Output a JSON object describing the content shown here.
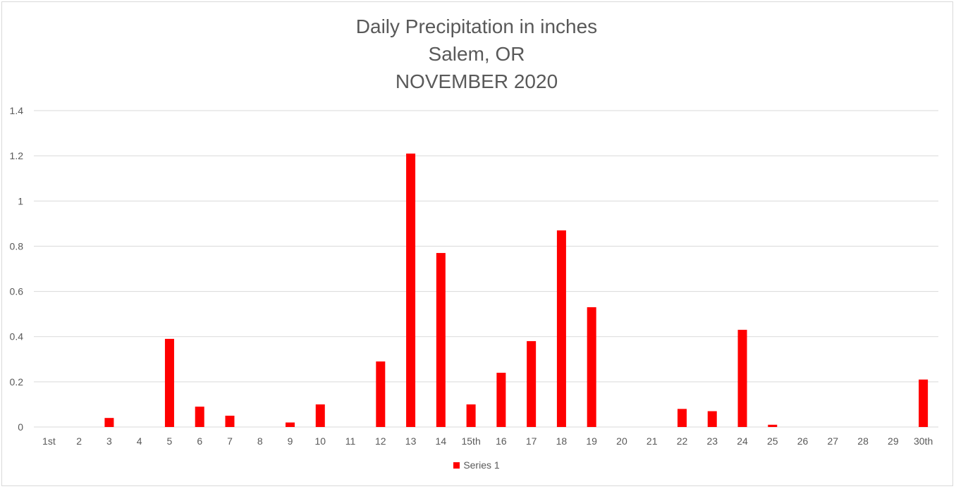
{
  "chart_data": {
    "type": "bar",
    "title_lines": [
      "Daily Precipitation in inches",
      "Salem, OR",
      "NOVEMBER 2020"
    ],
    "categories": [
      "1st",
      "2",
      "3",
      "4",
      "5",
      "6",
      "7",
      "8",
      "9",
      "10",
      "11",
      "12",
      "13",
      "14",
      "15th",
      "16",
      "17",
      "18",
      "19",
      "20",
      "21",
      "22",
      "23",
      "24",
      "25",
      "26",
      "27",
      "28",
      "29",
      "30th"
    ],
    "series": [
      {
        "name": "Series 1",
        "color": "#ff0000",
        "values": [
          0,
          0,
          0.04,
          0,
          0.39,
          0.09,
          0.05,
          0,
          0.02,
          0.1,
          0,
          0.29,
          1.21,
          0.77,
          0.1,
          0.24,
          0.38,
          0.87,
          0.53,
          0,
          0,
          0.08,
          0.07,
          0.43,
          0.01,
          0,
          0,
          0,
          0,
          0.21
        ]
      }
    ],
    "y_ticks": [
      "0",
      "0.2",
      "0.4",
      "0.6",
      "0.8",
      "1",
      "1.2",
      "1.4"
    ],
    "ylim": [
      0,
      1.4
    ],
    "grid": true,
    "legend_position": "bottom"
  }
}
